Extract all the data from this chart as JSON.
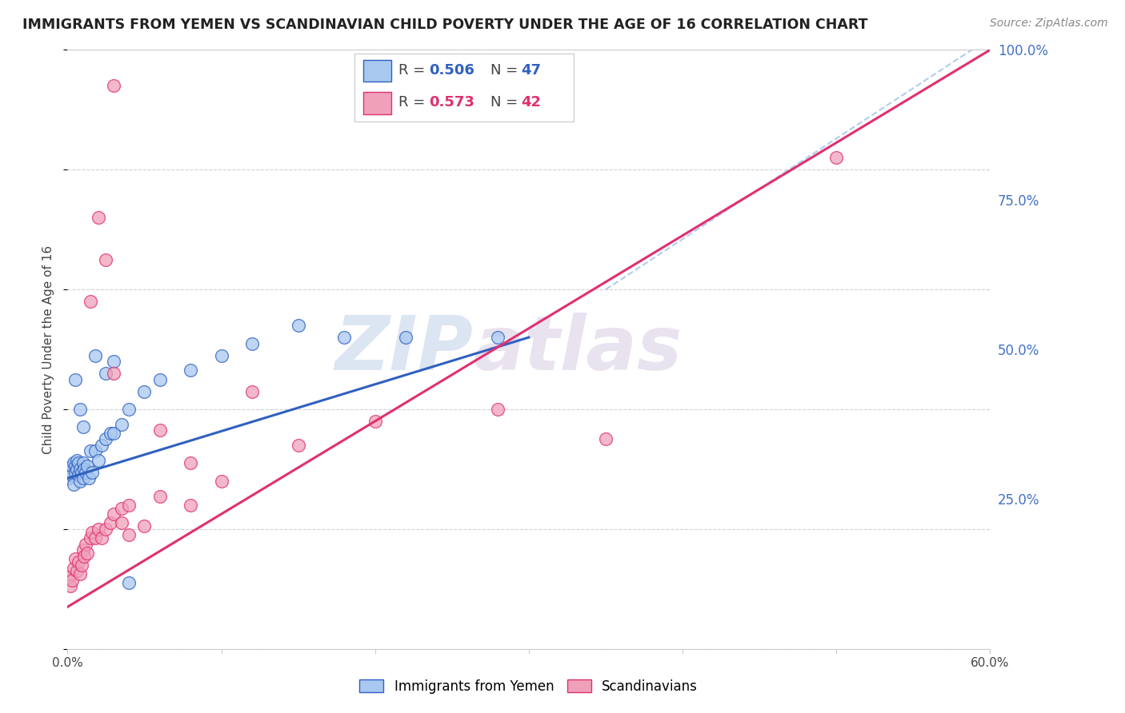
{
  "title": "IMMIGRANTS FROM YEMEN VS SCANDINAVIAN CHILD POVERTY UNDER THE AGE OF 16 CORRELATION CHART",
  "source": "Source: ZipAtlas.com",
  "ylabel": "Child Poverty Under the Age of 16",
  "legend_label_blue": "Immigrants from Yemen",
  "legend_label_pink": "Scandinavians",
  "R_blue": "0.506",
  "N_blue": "47",
  "R_pink": "0.573",
  "N_pink": "42",
  "xlim": [
    0.0,
    0.6
  ],
  "ylim": [
    0.0,
    1.0
  ],
  "xticks": [
    0.0,
    0.1,
    0.2,
    0.3,
    0.4,
    0.5,
    0.6
  ],
  "xticklabels": [
    "0.0%",
    "",
    "",
    "",
    "",
    "",
    "60.0%"
  ],
  "yticks_right": [
    0.25,
    0.5,
    0.75,
    1.0
  ],
  "ytick_labels_right": [
    "25.0%",
    "50.0%",
    "75.0%",
    "100.0%"
  ],
  "color_blue": "#A8C8F0",
  "color_pink": "#F0A0B8",
  "line_color_blue": "#3060C0",
  "line_color_pink": "#E03070",
  "dash_color": "#A8C8F0",
  "watermark_zip": "ZIP",
  "watermark_atlas": "atlas",
  "background_color": "#FFFFFF",
  "grid_color": "#CCCCCC",
  "blue_trend": [
    0.0,
    0.285,
    0.3,
    0.52
  ],
  "pink_trend": [
    0.0,
    0.07,
    0.6,
    1.0
  ],
  "dash_line": [
    0.35,
    0.6,
    0.6,
    1.02
  ],
  "blue_x": [
    0.001,
    0.002,
    0.003,
    0.003,
    0.004,
    0.004,
    0.005,
    0.005,
    0.006,
    0.006,
    0.007,
    0.007,
    0.008,
    0.008,
    0.009,
    0.01,
    0.01,
    0.011,
    0.012,
    0.013,
    0.014,
    0.015,
    0.016,
    0.018,
    0.02,
    0.022,
    0.025,
    0.028,
    0.03,
    0.035,
    0.04,
    0.05,
    0.06,
    0.08,
    0.1,
    0.12,
    0.15,
    0.18,
    0.22,
    0.28,
    0.005,
    0.008,
    0.01,
    0.018,
    0.025,
    0.03,
    0.04
  ],
  "blue_y": [
    0.285,
    0.295,
    0.29,
    0.305,
    0.31,
    0.275,
    0.305,
    0.295,
    0.315,
    0.3,
    0.29,
    0.31,
    0.28,
    0.3,
    0.295,
    0.31,
    0.285,
    0.3,
    0.295,
    0.305,
    0.285,
    0.33,
    0.295,
    0.33,
    0.315,
    0.34,
    0.35,
    0.36,
    0.36,
    0.375,
    0.4,
    0.43,
    0.45,
    0.465,
    0.49,
    0.51,
    0.54,
    0.52,
    0.52,
    0.52,
    0.45,
    0.4,
    0.37,
    0.49,
    0.46,
    0.48,
    0.11
  ],
  "pink_x": [
    0.001,
    0.002,
    0.003,
    0.004,
    0.005,
    0.006,
    0.007,
    0.008,
    0.009,
    0.01,
    0.011,
    0.012,
    0.013,
    0.015,
    0.016,
    0.018,
    0.02,
    0.022,
    0.025,
    0.028,
    0.03,
    0.035,
    0.04,
    0.05,
    0.06,
    0.08,
    0.1,
    0.15,
    0.2,
    0.28,
    0.35,
    0.5,
    0.015,
    0.02,
    0.025,
    0.03,
    0.035,
    0.04,
    0.06,
    0.08,
    0.12,
    0.03
  ],
  "pink_y": [
    0.12,
    0.105,
    0.115,
    0.135,
    0.15,
    0.13,
    0.145,
    0.125,
    0.14,
    0.165,
    0.155,
    0.175,
    0.16,
    0.185,
    0.195,
    0.185,
    0.2,
    0.185,
    0.2,
    0.21,
    0.225,
    0.235,
    0.24,
    0.205,
    0.255,
    0.31,
    0.28,
    0.34,
    0.38,
    0.4,
    0.35,
    0.82,
    0.58,
    0.72,
    0.65,
    0.46,
    0.21,
    0.19,
    0.365,
    0.24,
    0.43,
    0.94
  ]
}
